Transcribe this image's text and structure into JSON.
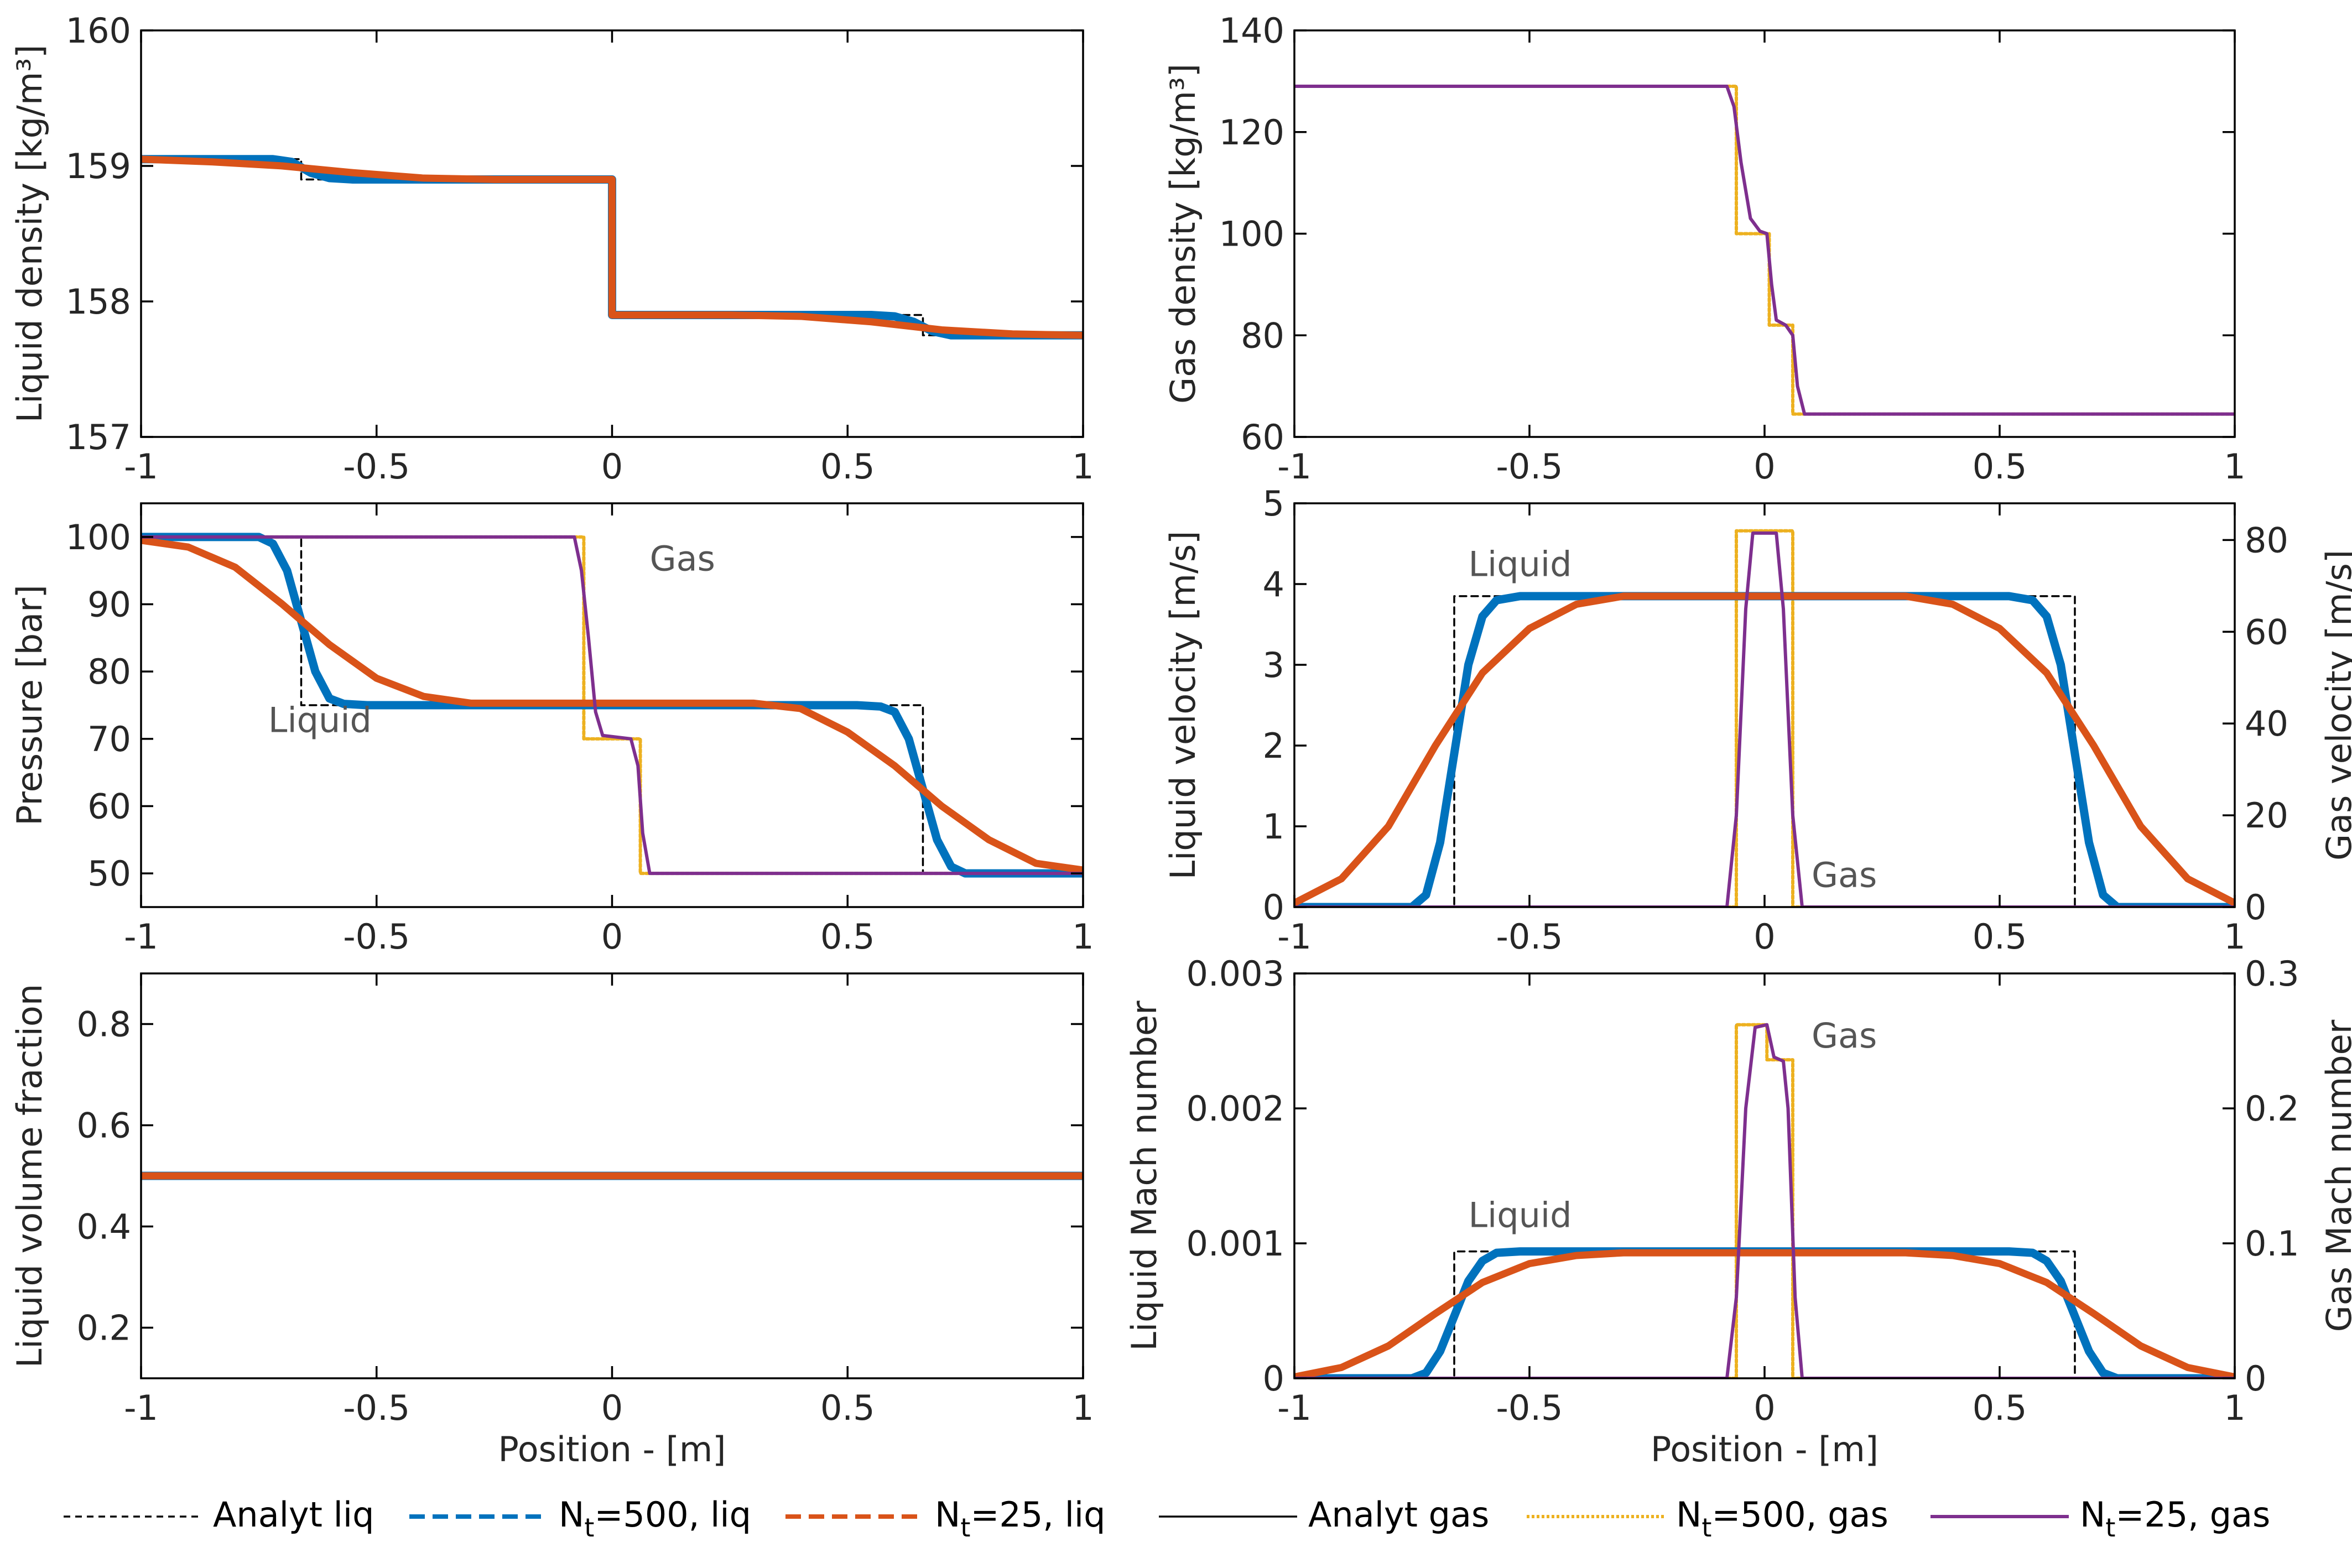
{
  "colors": {
    "analyt_liq": "#000000",
    "liq_500": "#0072BD",
    "liq_25": "#D95319",
    "analyt_gas": "#000000",
    "gas_500": "#EDB120",
    "gas_25": "#7E2F8E",
    "label_gray": "#555555"
  },
  "legend": {
    "items": [
      {
        "key": "analyt_liq",
        "label": "Analyt liq",
        "sub": "",
        "suffix": ""
      },
      {
        "key": "liq_500",
        "label": "N",
        "sub": "t",
        "suffix": "=500, liq"
      },
      {
        "key": "liq_25",
        "label": "N",
        "sub": "t",
        "suffix": "=25, liq"
      },
      {
        "key": "analyt_gas",
        "label": "Analyt gas",
        "sub": "",
        "suffix": ""
      },
      {
        "key": "gas_500",
        "label": "N",
        "sub": "t",
        "suffix": "=500, gas"
      },
      {
        "key": "gas_25",
        "label": "N",
        "sub": "t",
        "suffix": "=25, gas"
      }
    ]
  },
  "chart_data": [
    {
      "id": "liquid-density",
      "type": "line",
      "title": "",
      "xlabel": "",
      "ylabel": "Liquid density [kg/m³]",
      "xlim": [
        -1,
        1
      ],
      "ylim": [
        157,
        160
      ],
      "xticks": [
        -1,
        -0.5,
        0,
        0.5,
        1
      ],
      "xtick_labels": [
        "-1",
        "-0.5",
        "0",
        "0.5",
        "1"
      ],
      "yticks": [
        157,
        158,
        159,
        160
      ],
      "ytick_labels": [
        "157",
        "158",
        "159",
        "160"
      ],
      "annotations": [],
      "series": [
        {
          "name": "Analyt liq",
          "style": "analyt_liq",
          "x": [
            -1,
            -0.66,
            -0.66,
            0,
            0,
            0.66,
            0.66,
            1
          ],
          "y": [
            159.05,
            159.05,
            158.9,
            158.9,
            157.9,
            157.9,
            157.75,
            157.75
          ]
        },
        {
          "name": "Nt=500, liq",
          "style": "liq_500",
          "x": [
            -1,
            -0.72,
            -0.68,
            -0.64,
            -0.6,
            -0.55,
            0,
            0,
            0.55,
            0.6,
            0.64,
            0.68,
            0.72,
            1
          ],
          "y": [
            159.05,
            159.05,
            159.03,
            158.95,
            158.91,
            158.9,
            158.9,
            157.9,
            157.9,
            157.89,
            157.85,
            157.78,
            157.75,
            157.75
          ]
        },
        {
          "name": "Nt=25, liq",
          "style": "liq_25",
          "x": [
            -1,
            -0.85,
            -0.7,
            -0.55,
            -0.4,
            -0.25,
            0,
            0,
            0.25,
            0.4,
            0.55,
            0.7,
            0.85,
            1
          ],
          "y": [
            159.05,
            159.03,
            159.0,
            158.95,
            158.91,
            158.9,
            158.9,
            157.9,
            157.9,
            157.89,
            157.85,
            157.79,
            157.76,
            157.75
          ]
        }
      ]
    },
    {
      "id": "gas-density",
      "type": "line",
      "title": "",
      "xlabel": "",
      "ylabel": "Gas density [kg/m³]",
      "xlim": [
        -1,
        1
      ],
      "ylim": [
        60,
        140
      ],
      "xticks": [
        -1,
        -0.5,
        0,
        0.5,
        1
      ],
      "xtick_labels": [
        "-1",
        "-0.5",
        "0",
        "0.5",
        "1"
      ],
      "yticks": [
        60,
        80,
        100,
        120,
        140
      ],
      "ytick_labels": [
        "60",
        "80",
        "100",
        "120",
        "140"
      ],
      "annotations": [],
      "series": [
        {
          "name": "Analyt gas",
          "style": "analyt_gas",
          "x": [
            -1,
            -0.06,
            -0.06,
            0.01,
            0.01,
            0.06,
            0.06,
            1
          ],
          "y": [
            129,
            129,
            100,
            100,
            82,
            82,
            64.5,
            64.5
          ]
        },
        {
          "name": "Nt=500, gas",
          "style": "gas_500",
          "x": [
            -1,
            -0.06,
            -0.06,
            0.01,
            0.01,
            0.06,
            0.06,
            1
          ],
          "y": [
            129,
            129,
            100,
            100,
            82,
            82,
            64.5,
            64.5
          ]
        },
        {
          "name": "Nt=25, gas",
          "style": "gas_25",
          "x": [
            -1,
            -0.08,
            -0.065,
            -0.05,
            -0.03,
            -0.01,
            0.005,
            0.015,
            0.025,
            0.045,
            0.06,
            0.07,
            0.085,
            1
          ],
          "y": [
            129,
            129,
            125,
            114,
            103,
            100.5,
            100,
            90,
            83,
            82,
            80,
            70,
            64.5,
            64.5
          ]
        }
      ]
    },
    {
      "id": "pressure",
      "type": "line",
      "title": "",
      "xlabel": "",
      "ylabel": "Pressure [bar]",
      "xlim": [
        -1,
        1
      ],
      "ylim": [
        45,
        105
      ],
      "xticks": [
        -1,
        -0.5,
        0,
        0.5,
        1
      ],
      "xtick_labels": [
        "-1",
        "-0.5",
        "0",
        "0.5",
        "1"
      ],
      "yticks": [
        50,
        60,
        70,
        80,
        90,
        100
      ],
      "ytick_labels": [
        "50",
        "60",
        "70",
        "80",
        "90",
        "100"
      ],
      "annotations": [
        {
          "text": "Gas",
          "x": 0.08,
          "y": 95
        },
        {
          "text": "Liquid",
          "x": -0.73,
          "y": 71
        }
      ],
      "series": [
        {
          "name": "Analyt liq",
          "style": "analyt_liq",
          "x": [
            -1,
            -0.66,
            -0.66,
            0.66,
            0.66,
            1
          ],
          "y": [
            100,
            100,
            75,
            75,
            50,
            50
          ]
        },
        {
          "name": "Nt=500, liq",
          "style": "liq_500",
          "x": [
            -1,
            -0.75,
            -0.72,
            -0.69,
            -0.66,
            -0.63,
            -0.6,
            -0.57,
            -0.52,
            0.52,
            0.57,
            0.6,
            0.63,
            0.66,
            0.69,
            0.72,
            0.75,
            1
          ],
          "y": [
            100,
            100,
            99,
            95,
            87.5,
            80,
            76,
            75.2,
            75,
            75,
            74.8,
            74,
            70,
            62.5,
            55,
            51,
            50,
            50
          ]
        },
        {
          "name": "Nt=25, liq",
          "style": "liq_25",
          "x": [
            -1,
            -0.9,
            -0.8,
            -0.7,
            -0.6,
            -0.5,
            -0.4,
            -0.3,
            0.3,
            0.4,
            0.5,
            0.6,
            0.7,
            0.8,
            0.9,
            1
          ],
          "y": [
            99.5,
            98.5,
            95.5,
            90,
            84,
            79,
            76.3,
            75.3,
            75.3,
            74.5,
            71,
            66,
            60,
            55,
            51.5,
            50.5
          ]
        },
        {
          "name": "Analyt gas",
          "style": "analyt_gas",
          "x": [
            -1,
            -0.06,
            -0.06,
            0.06,
            0.06,
            1
          ],
          "y": [
            100,
            100,
            70,
            70,
            50,
            50
          ]
        },
        {
          "name": "Nt=500, gas",
          "style": "gas_500",
          "x": [
            -1,
            -0.06,
            -0.06,
            0.06,
            0.06,
            1
          ],
          "y": [
            100,
            100,
            70,
            70,
            50,
            50
          ]
        },
        {
          "name": "Nt=25, gas",
          "style": "gas_25",
          "x": [
            -1,
            -0.08,
            -0.065,
            -0.05,
            -0.035,
            -0.02,
            0.04,
            0.055,
            0.065,
            0.08,
            1
          ],
          "y": [
            100,
            100,
            95,
            85,
            74,
            70.5,
            70,
            66,
            56,
            50,
            50
          ]
        }
      ]
    },
    {
      "id": "velocity",
      "type": "line",
      "title": "",
      "xlabel": "",
      "ylabel": "Liquid velocity [m/s]",
      "y2label": "Gas velocity [m/s]",
      "xlim": [
        -1,
        1
      ],
      "ylim": [
        0,
        5
      ],
      "y2lim": [
        0,
        88
      ],
      "xticks": [
        -1,
        -0.5,
        0,
        0.5,
        1
      ],
      "xtick_labels": [
        "-1",
        "-0.5",
        "0",
        "0.5",
        "1"
      ],
      "yticks": [
        0,
        1,
        2,
        3,
        4,
        5
      ],
      "ytick_labels": [
        "0",
        "1",
        "2",
        "3",
        "4",
        "5"
      ],
      "y2ticks": [
        0,
        20,
        40,
        60,
        80
      ],
      "y2tick_labels": [
        "0",
        "20",
        "40",
        "60",
        "80"
      ],
      "annotations": [
        {
          "text": "Liquid",
          "x": -0.63,
          "y": 4.1
        },
        {
          "text": "Gas",
          "x": 0.1,
          "y": 0.25
        }
      ],
      "series": [
        {
          "name": "Analyt liq",
          "style": "analyt_liq",
          "axis": "left",
          "x": [
            -1,
            -0.66,
            -0.66,
            0.66,
            0.66,
            1
          ],
          "y": [
            0,
            0,
            3.85,
            3.85,
            0,
            0
          ]
        },
        {
          "name": "Nt=500, liq",
          "style": "liq_500",
          "axis": "left",
          "x": [
            -1,
            -0.75,
            -0.72,
            -0.69,
            -0.66,
            -0.63,
            -0.6,
            -0.57,
            -0.52,
            0.52,
            0.57,
            0.6,
            0.63,
            0.66,
            0.69,
            0.72,
            0.75,
            1
          ],
          "y": [
            0,
            0,
            0.15,
            0.8,
            1.9,
            3.0,
            3.6,
            3.8,
            3.85,
            3.85,
            3.8,
            3.6,
            3.0,
            1.9,
            0.8,
            0.15,
            0,
            0
          ]
        },
        {
          "name": "Nt=25, liq",
          "style": "liq_25",
          "axis": "left",
          "x": [
            -1,
            -0.9,
            -0.8,
            -0.7,
            -0.6,
            -0.5,
            -0.4,
            -0.3,
            0.3,
            0.4,
            0.5,
            0.6,
            0.7,
            0.8,
            0.9,
            1
          ],
          "y": [
            0.05,
            0.35,
            1.0,
            2.0,
            2.9,
            3.45,
            3.75,
            3.85,
            3.85,
            3.75,
            3.45,
            2.9,
            2.0,
            1.0,
            0.35,
            0.05
          ]
        },
        {
          "name": "Analyt gas",
          "style": "analyt_gas",
          "axis": "right",
          "x": [
            -1,
            -0.06,
            -0.06,
            0.06,
            0.06,
            1
          ],
          "y": [
            0,
            0,
            82,
            82,
            0,
            0
          ]
        },
        {
          "name": "Nt=500, gas",
          "style": "gas_500",
          "axis": "right",
          "x": [
            -1,
            -0.06,
            -0.06,
            0.06,
            0.06,
            1
          ],
          "y": [
            0,
            0,
            82,
            82,
            0,
            0
          ]
        },
        {
          "name": "Nt=25, gas",
          "style": "gas_25",
          "axis": "right",
          "x": [
            -1,
            -0.08,
            -0.06,
            -0.04,
            -0.025,
            0.025,
            0.04,
            0.06,
            0.08,
            1
          ],
          "y": [
            0,
            0,
            20,
            65,
            81.5,
            81.5,
            65,
            20,
            0,
            0
          ]
        }
      ]
    },
    {
      "id": "liquid-volume-fraction",
      "type": "line",
      "title": "",
      "xlabel": "Position - [m]",
      "ylabel": "Liquid volume fraction",
      "xlim": [
        -1,
        1
      ],
      "ylim": [
        0.1,
        0.9
      ],
      "xticks": [
        -1,
        -0.5,
        0,
        0.5,
        1
      ],
      "xtick_labels": [
        "-1",
        "-0.5",
        "0",
        "0.5",
        "1"
      ],
      "yticks": [
        0.2,
        0.4,
        0.6,
        0.8
      ],
      "ytick_labels": [
        "0.2",
        "0.4",
        "0.6",
        "0.8"
      ],
      "annotations": [],
      "series": [
        {
          "name": "Analyt liq",
          "style": "analyt_liq",
          "x": [
            -1,
            1
          ],
          "y": [
            0.5,
            0.5
          ]
        },
        {
          "name": "Nt=500, liq",
          "style": "liq_500",
          "x": [
            -1,
            1
          ],
          "y": [
            0.5,
            0.5
          ]
        },
        {
          "name": "Nt=25, liq",
          "style": "liq_25",
          "x": [
            -1,
            1
          ],
          "y": [
            0.5,
            0.5
          ]
        }
      ]
    },
    {
      "id": "mach-number",
      "type": "line",
      "title": "",
      "xlabel": "Position - [m]",
      "ylabel": "Liquid Mach number",
      "y2label": "Gas Mach number",
      "xlim": [
        -1,
        1
      ],
      "ylim": [
        0,
        0.003
      ],
      "y2lim": [
        0,
        0.3
      ],
      "xticks": [
        -1,
        -0.5,
        0,
        0.5,
        1
      ],
      "xtick_labels": [
        "-1",
        "-0.5",
        "0",
        "0.5",
        "1"
      ],
      "yticks": [
        0,
        0.001,
        0.002,
        0.003
      ],
      "ytick_labels": [
        "0",
        "0.001",
        "0.002",
        "0.003"
      ],
      "y2ticks": [
        0,
        0.1,
        0.2,
        0.3
      ],
      "y2tick_labels": [
        "0",
        "0.1",
        "0.2",
        "0.3"
      ],
      "annotations": [
        {
          "text": "Gas",
          "x": 0.1,
          "y": 0.00245
        },
        {
          "text": "Liquid",
          "x": -0.63,
          "y": 0.00112
        }
      ],
      "series": [
        {
          "name": "Analyt liq",
          "style": "analyt_liq",
          "axis": "left",
          "x": [
            -1,
            -0.66,
            -0.66,
            0.66,
            0.66,
            1
          ],
          "y": [
            0,
            0,
            0.00094,
            0.00094,
            0,
            0
          ]
        },
        {
          "name": "Nt=500, liq",
          "style": "liq_500",
          "axis": "left",
          "x": [
            -1,
            -0.75,
            -0.72,
            -0.69,
            -0.66,
            -0.63,
            -0.6,
            -0.57,
            -0.52,
            0.52,
            0.57,
            0.6,
            0.63,
            0.66,
            0.69,
            0.72,
            0.75,
            1
          ],
          "y": [
            0,
            0,
            4e-05,
            0.0002,
            0.00046,
            0.00072,
            0.00087,
            0.00093,
            0.00094,
            0.00094,
            0.00093,
            0.00087,
            0.00072,
            0.00046,
            0.0002,
            4e-05,
            0,
            0
          ]
        },
        {
          "name": "Nt=25, liq",
          "style": "liq_25",
          "axis": "left",
          "x": [
            -1,
            -0.9,
            -0.8,
            -0.7,
            -0.6,
            -0.5,
            -0.4,
            -0.3,
            0.3,
            0.4,
            0.5,
            0.6,
            0.7,
            0.8,
            0.9,
            1
          ],
          "y": [
            1e-05,
            8e-05,
            0.00024,
            0.00048,
            0.00071,
            0.00085,
            0.00091,
            0.00093,
            0.00093,
            0.00091,
            0.00085,
            0.00071,
            0.00048,
            0.00024,
            8e-05,
            1e-05
          ]
        },
        {
          "name": "Analyt gas",
          "style": "analyt_gas",
          "axis": "right",
          "x": [
            -1,
            -0.06,
            -0.06,
            0.005,
            0.005,
            0.06,
            0.06,
            1
          ],
          "y": [
            0,
            0,
            0.262,
            0.262,
            0.236,
            0.236,
            0,
            0
          ]
        },
        {
          "name": "Nt=500, gas",
          "style": "gas_500",
          "axis": "right",
          "x": [
            -1,
            -0.06,
            -0.06,
            0.005,
            0.005,
            0.06,
            0.06,
            1
          ],
          "y": [
            0,
            0,
            0.262,
            0.262,
            0.236,
            0.236,
            0,
            0
          ]
        },
        {
          "name": "Nt=25, gas",
          "style": "gas_25",
          "axis": "right",
          "x": [
            -1,
            -0.08,
            -0.06,
            -0.04,
            -0.02,
            0.005,
            0.02,
            0.04,
            0.05,
            0.065,
            0.08,
            1
          ],
          "y": [
            0,
            0,
            0.06,
            0.2,
            0.26,
            0.262,
            0.238,
            0.235,
            0.2,
            0.06,
            0,
            0
          ]
        }
      ]
    }
  ]
}
